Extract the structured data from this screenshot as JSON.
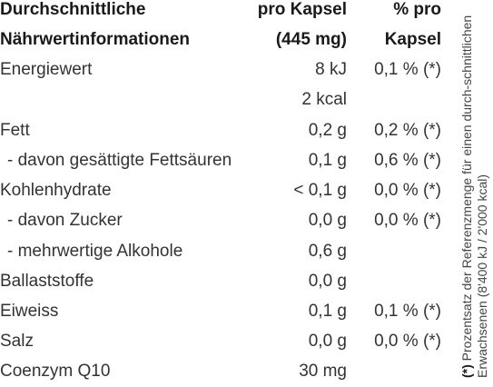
{
  "header": {
    "row1": {
      "name": "Durchschnittliche",
      "per_capsule": "pro Kapsel",
      "percent": "% pro"
    },
    "row2": {
      "name": "Nährwertinformationen",
      "per_capsule": "(445 mg)",
      "percent": "Kapsel"
    }
  },
  "rows": [
    {
      "name": "Energiewert",
      "per_capsule": "8 kJ",
      "percent": "0,1 % (*)"
    },
    {
      "name": "",
      "per_capsule": "2 kcal",
      "percent": ""
    },
    {
      "name": "Fett",
      "per_capsule": "0,2 g",
      "percent": "0,2 % (*)"
    },
    {
      "name": " - davon gesättigte Fettsäuren",
      "per_capsule": "0,1 g",
      "percent": "0,6 % (*)"
    },
    {
      "name": "Kohlenhydrate",
      "per_capsule": "< 0,1 g",
      "percent": "0,0 % (*)"
    },
    {
      "name": " - davon Zucker",
      "per_capsule": "0,0 g",
      "percent": "0,0 % (*)"
    },
    {
      "name": " - mehrwertige Alkohole",
      "per_capsule": "0,6 g",
      "percent": ""
    },
    {
      "name": "Ballaststoffe",
      "per_capsule": "0,0 g",
      "percent": ""
    },
    {
      "name": "Eiweiss",
      "per_capsule": "0,1 g",
      "percent": "0,1 % (*)"
    },
    {
      "name": "Salz",
      "per_capsule": "0,0 g",
      "percent": "0,0 % (*)"
    },
    {
      "name": "Coenzym Q10",
      "per_capsule": "30 mg",
      "percent": ""
    }
  ],
  "footnote": {
    "marker": "(*)",
    "text": " Prozentsatz der Referenzmenge für einen durch-schnittlichen Erwachsenen (8'400 kJ / 2'000 kcal)"
  }
}
